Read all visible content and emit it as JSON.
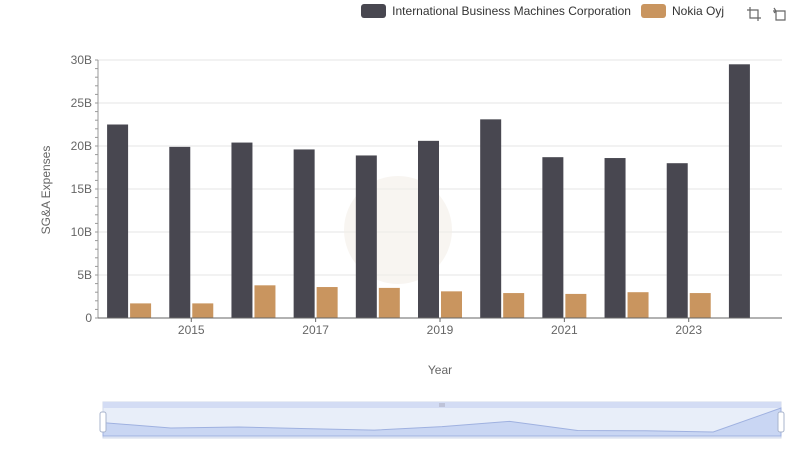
{
  "chart_data": {
    "type": "bar",
    "categories": [
      "2014",
      "2015",
      "2016",
      "2017",
      "2018",
      "2019",
      "2020",
      "2021",
      "2022",
      "2023",
      "2024"
    ],
    "x_tick_labels": [
      "2015",
      "2017",
      "2019",
      "2021",
      "2023"
    ],
    "series": [
      {
        "name": "International Business Machines Corporation",
        "color": "#484750",
        "values": [
          22.5,
          19.9,
          20.4,
          19.6,
          18.9,
          20.6,
          23.1,
          18.7,
          18.6,
          18.0,
          29.5
        ]
      },
      {
        "name": "Nokia Oyj",
        "color": "#c9955f",
        "values": [
          1.7,
          1.7,
          3.8,
          3.6,
          3.5,
          3.1,
          2.9,
          2.8,
          3.0,
          2.9,
          null
        ]
      }
    ],
    "ylim": [
      0,
      30
    ],
    "y_tick_labels": [
      "0",
      "5B",
      "10B",
      "15B",
      "20B",
      "25B",
      "30B"
    ],
    "y_ticks": [
      0,
      5,
      10,
      15,
      20,
      25,
      30
    ],
    "xlabel": "Year",
    "ylabel": "SG&A Expenses",
    "grid": true,
    "legend_position": "top-right"
  },
  "toolbox": {
    "zoom_icon": "zoom-icon",
    "restore_icon": "zoom-reset-icon"
  },
  "slider": {
    "handle_icon": "drag-handle-icon"
  }
}
